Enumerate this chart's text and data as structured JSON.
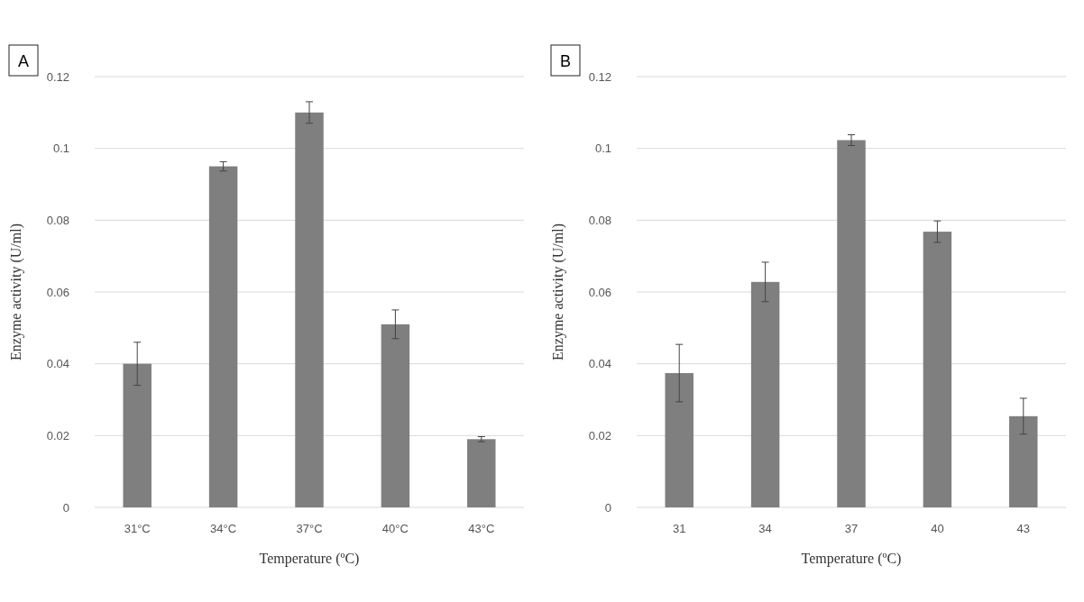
{
  "chart_data": [
    {
      "type": "bar",
      "title": "A",
      "xlabel": "Temperature (ºC)",
      "ylabel": "Enzyme activity (U/ml)",
      "categories": [
        "31°C",
        "34°C",
        "37°C",
        "40°C",
        "43°C"
      ],
      "values": [
        0.04,
        0.095,
        0.11,
        0.051,
        0.019
      ],
      "errors": [
        0.006,
        0.0013,
        0.003,
        0.004,
        0.0007
      ],
      "color": "#7f7f7f",
      "ylim": [
        0,
        0.12
      ],
      "yticks": [
        0,
        0.02,
        0.04,
        0.06,
        0.08,
        0.1,
        0.12
      ],
      "grid": "y"
    },
    {
      "type": "bar",
      "title": "B",
      "xlabel": "Temperature (ºC)",
      "ylabel": "Enzyme activity (U/ml)",
      "categories": [
        "31",
        "34",
        "37",
        "40",
        "43"
      ],
      "values": [
        0.0374,
        0.0628,
        0.1023,
        0.0768,
        0.0254
      ],
      "errors": [
        0.008,
        0.0055,
        0.0015,
        0.003,
        0.005
      ],
      "color": "#7f7f7f",
      "ylim": [
        0,
        0.12
      ],
      "yticks": [
        0,
        0.02,
        0.04,
        0.06,
        0.08,
        0.1,
        0.12
      ],
      "grid": "y"
    }
  ]
}
